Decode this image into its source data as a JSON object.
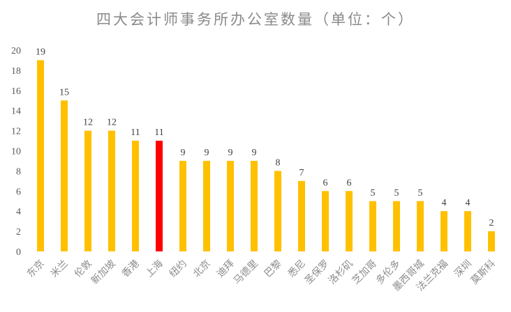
{
  "chart_data": {
    "type": "bar",
    "title": "四大会计师事务所办公室数量（单位：个）",
    "xlabel": "",
    "ylabel": "",
    "ylim": [
      0,
      20
    ],
    "yticks": [
      0,
      2,
      4,
      6,
      8,
      10,
      12,
      14,
      16,
      18,
      20
    ],
    "grid": false,
    "legend": "none",
    "categories": [
      "东京",
      "米兰",
      "伦敦",
      "新加坡",
      "香港",
      "上海",
      "纽约",
      "北京",
      "迪拜",
      "马德里",
      "巴黎",
      "悉尼",
      "圣保罗",
      "洛杉矶",
      "芝加哥",
      "多伦多",
      "墨西哥城",
      "法兰克福",
      "深圳",
      "莫斯科"
    ],
    "values": [
      19,
      15,
      12,
      12,
      11,
      11,
      9,
      9,
      9,
      9,
      8,
      7,
      6,
      6,
      5,
      5,
      5,
      4,
      4,
      2
    ],
    "colors": {
      "default": "#FFC000",
      "highlight": "#FF0000"
    },
    "highlight_category": "上海"
  }
}
